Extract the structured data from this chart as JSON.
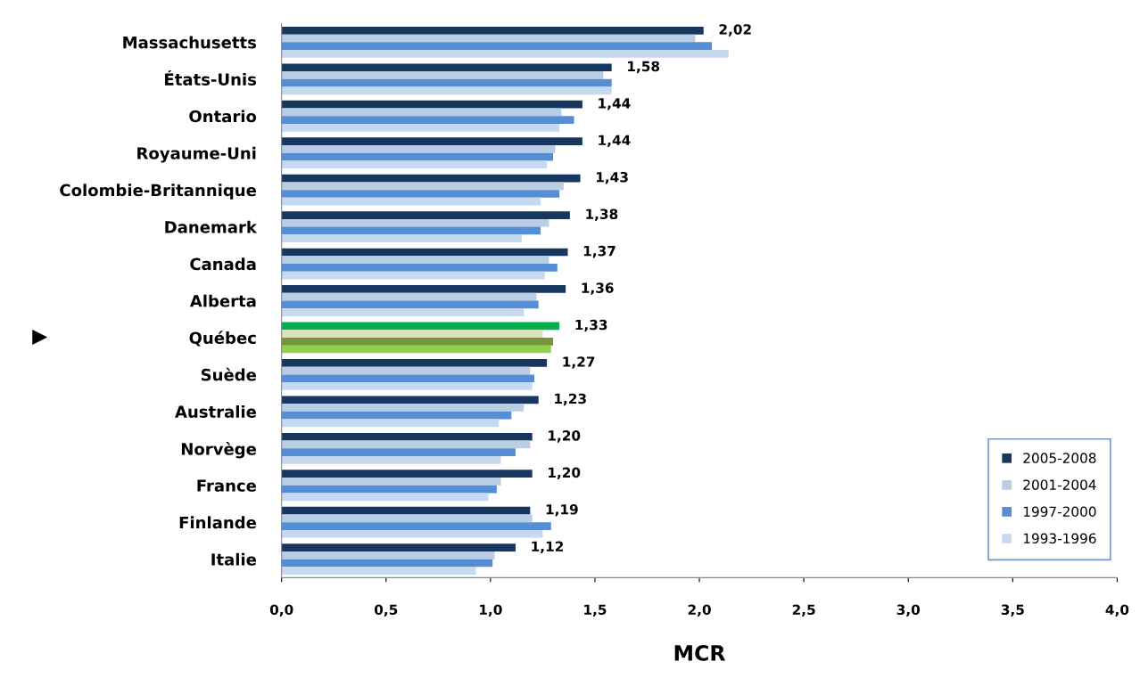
{
  "chart_data": {
    "type": "bar",
    "orientation": "horizontal",
    "xlabel": "MCR",
    "categories": [
      "Massachusetts",
      "États-Unis",
      "Ontario",
      "Royaume-Uni",
      "Colombie-Britannique",
      "Danemark",
      "Canada",
      "Alberta",
      "Québec",
      "Suède",
      "Australie",
      "Norvège",
      "France",
      "Finlande",
      "Italie"
    ],
    "series": [
      {
        "name": "2005-2008",
        "color": "#17375e",
        "colors": [
          "#17375e",
          "#17375e",
          "#17375e",
          "#17375e",
          "#17375e",
          "#17375e",
          "#17375e",
          "#17375e",
          "#00b050",
          "#17375e",
          "#17375e",
          "#17375e",
          "#17375e",
          "#17375e",
          "#17375e"
        ],
        "values": [
          2.02,
          1.58,
          1.44,
          1.44,
          1.43,
          1.38,
          1.37,
          1.36,
          1.33,
          1.27,
          1.23,
          1.2,
          1.2,
          1.19,
          1.12
        ],
        "value_labels": [
          "2,02",
          "1,58",
          "1,44",
          "1,44",
          "1,43",
          "1,38",
          "1,37",
          "1,36",
          "1,33",
          "1,27",
          "1,23",
          "1,20",
          "1,20",
          "1,19",
          "1,12"
        ]
      },
      {
        "name": "2001-2004",
        "color": "#b9cde5",
        "colors": [
          "#b9cde5",
          "#b9cde5",
          "#b9cde5",
          "#b9cde5",
          "#b9cde5",
          "#b9cde5",
          "#b9cde5",
          "#b9cde5",
          "#d8e4bc",
          "#b9cde5",
          "#b9cde5",
          "#b9cde5",
          "#b9cde5",
          "#b9cde5",
          "#b9cde5"
        ],
        "values": [
          1.98,
          1.54,
          1.34,
          1.31,
          1.35,
          1.28,
          1.28,
          1.22,
          1.25,
          1.19,
          1.16,
          1.19,
          1.05,
          1.2,
          1.02
        ]
      },
      {
        "name": "1997-2000",
        "color": "#558ed5",
        "colors": [
          "#558ed5",
          "#558ed5",
          "#558ed5",
          "#558ed5",
          "#558ed5",
          "#558ed5",
          "#558ed5",
          "#558ed5",
          "#77933c",
          "#558ed5",
          "#558ed5",
          "#558ed5",
          "#558ed5",
          "#558ed5",
          "#558ed5"
        ],
        "values": [
          2.06,
          1.58,
          1.4,
          1.3,
          1.33,
          1.24,
          1.32,
          1.23,
          1.3,
          1.21,
          1.1,
          1.12,
          1.03,
          1.29,
          1.01
        ]
      },
      {
        "name": "1993-1996",
        "color": "#c6d9f1",
        "colors": [
          "#c6d9f1",
          "#c6d9f1",
          "#c6d9f1",
          "#c6d9f1",
          "#c6d9f1",
          "#c6d9f1",
          "#c6d9f1",
          "#c6d9f1",
          "#92d050",
          "#c6d9f1",
          "#c6d9f1",
          "#c6d9f1",
          "#c6d9f1",
          "#c6d9f1",
          "#c6d9f1"
        ],
        "values": [
          2.14,
          1.58,
          1.33,
          1.27,
          1.24,
          1.15,
          1.26,
          1.16,
          1.29,
          1.2,
          1.04,
          1.05,
          0.99,
          1.25,
          0.93
        ]
      }
    ],
    "xlim": [
      0,
      4
    ],
    "xticks": [
      {
        "value": 0,
        "label": "0,0"
      },
      {
        "value": 0.5,
        "label": "0,5"
      },
      {
        "value": 1,
        "label": "1,0"
      },
      {
        "value": 1.5,
        "label": "1,5"
      },
      {
        "value": 2,
        "label": "2,0"
      },
      {
        "value": 2.5,
        "label": "2,5"
      },
      {
        "value": 3,
        "label": "3,0"
      },
      {
        "value": 3.5,
        "label": "3,5"
      },
      {
        "value": 4,
        "label": "4,0"
      }
    ],
    "annotations": [
      "▶"
    ],
    "legend": "bottom right",
    "grid": false
  }
}
